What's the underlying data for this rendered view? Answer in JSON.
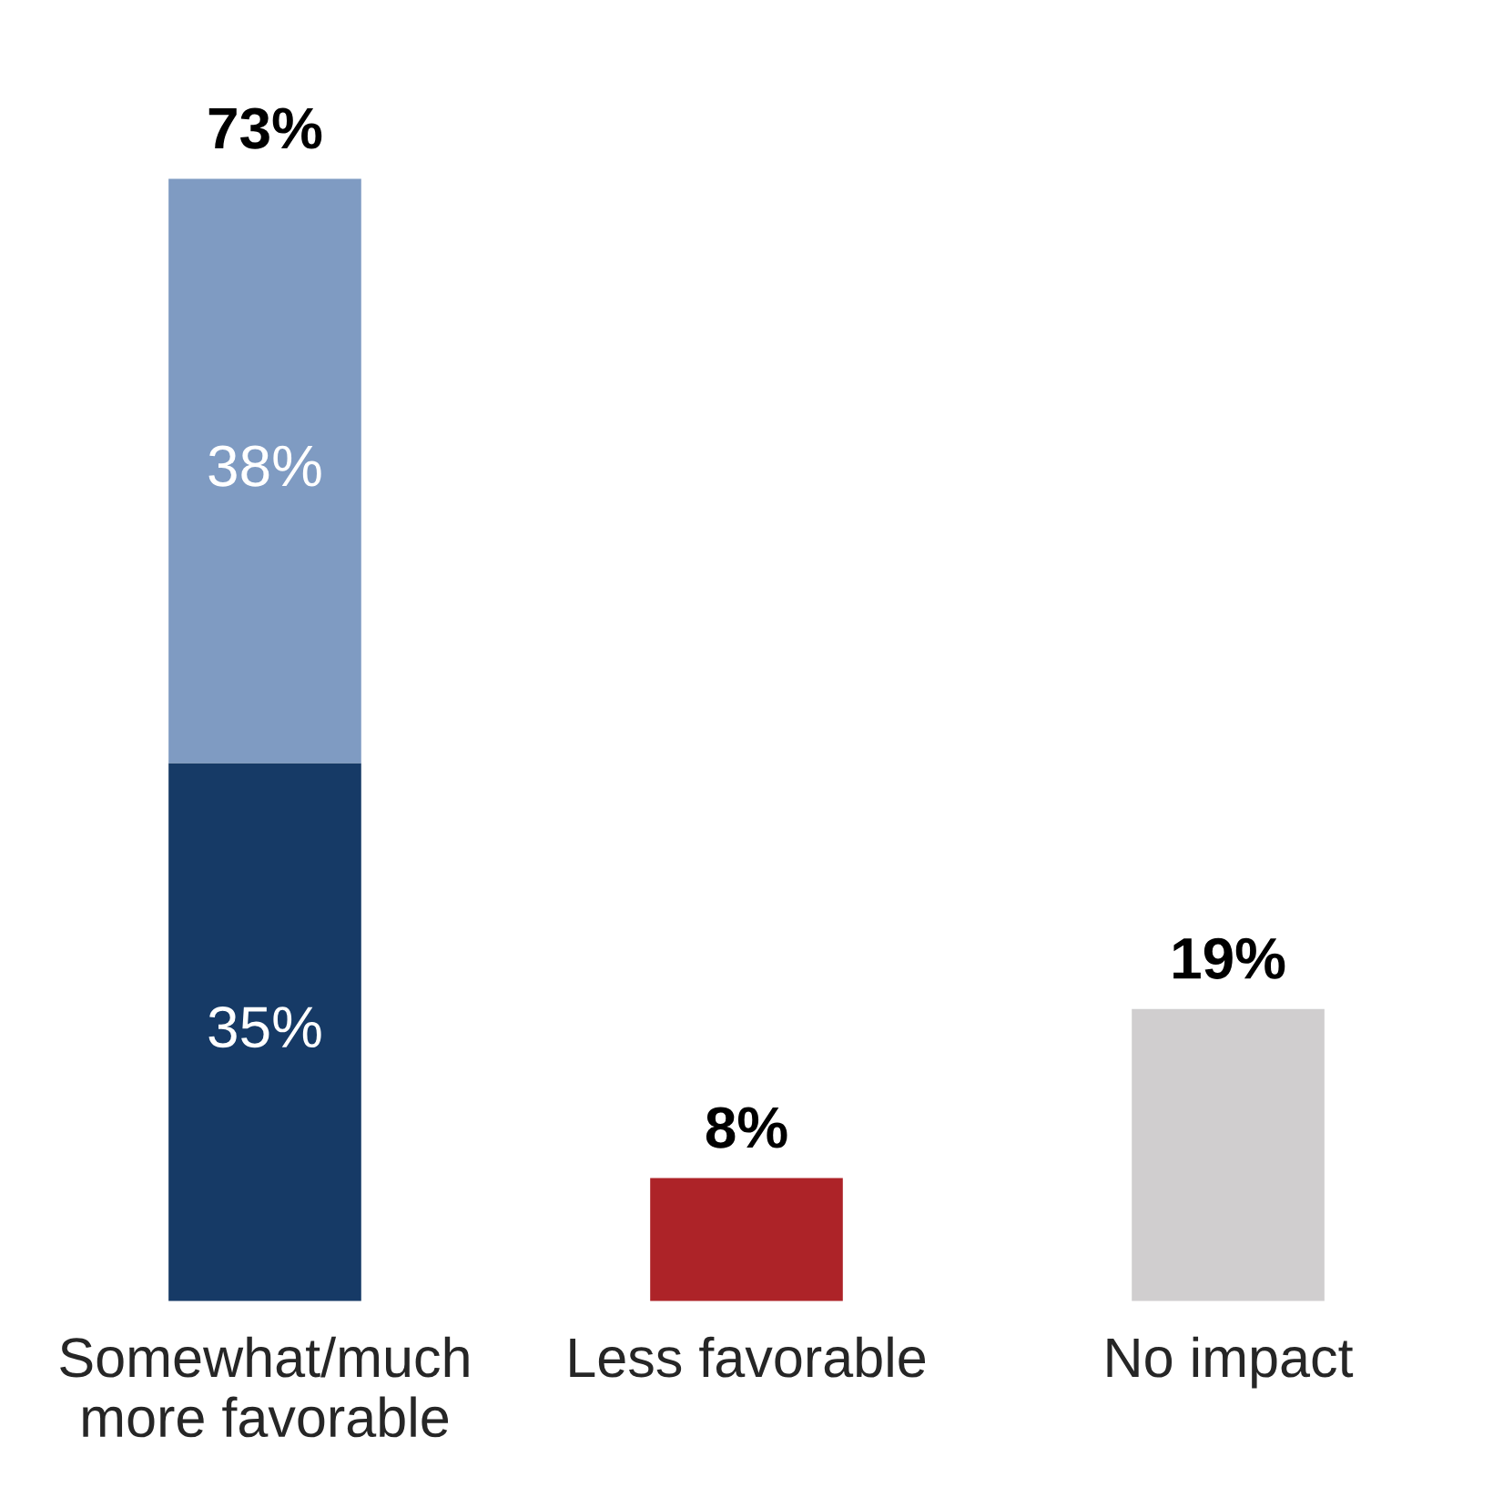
{
  "chart_data": {
    "type": "bar",
    "stacked": true,
    "categories": [
      "Somewhat/much\nmore favorable",
      "Less favorable",
      "No impact"
    ],
    "series": [
      {
        "values": [
          35,
          8,
          19
        ],
        "colors": [
          "#163a66",
          "#ad2328",
          "#d0cecf"
        ],
        "value_labels": [
          "35%",
          null,
          null
        ]
      },
      {
        "values": [
          38,
          null,
          null
        ],
        "color": "#7f9bc2",
        "value_labels": [
          "38%",
          null,
          null
        ]
      }
    ],
    "totals": [
      "73%",
      "8%",
      "19%"
    ]
  }
}
